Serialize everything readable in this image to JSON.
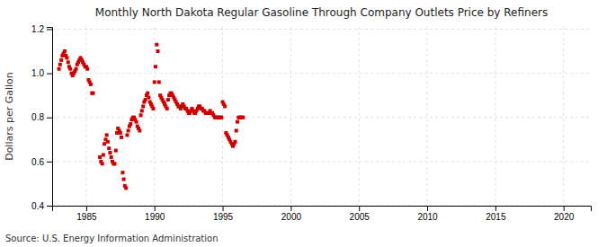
{
  "chart_data": {
    "type": "scatter",
    "title": "Monthly North Dakota Regular Gasoline Through Company Outlets Price by Refiners",
    "ylabel": "Dollars per Gallon",
    "source": "Source: U.S. Energy Information Administration",
    "color": "#cc0000",
    "marker": "square",
    "grid": true,
    "xlim": [
      1982.5,
      2022
    ],
    "ylim": [
      0.4,
      1.21
    ],
    "xticks": [
      1985,
      1990,
      1995,
      2000,
      2005,
      2010,
      2015,
      2020
    ],
    "yticks": [
      0.4,
      0.6,
      0.8,
      {
        "value": 1.0,
        "label": "1.0"
      },
      1.2
    ],
    "x": [
      1983.0,
      1983.08,
      1983.17,
      1983.25,
      1983.33,
      1983.42,
      1983.5,
      1983.58,
      1983.67,
      1983.75,
      1983.83,
      1983.92,
      1984.0,
      1984.08,
      1984.17,
      1984.25,
      1984.33,
      1984.42,
      1984.5,
      1984.58,
      1984.67,
      1984.75,
      1984.83,
      1984.92,
      1985.0,
      1985.08,
      1985.17,
      1985.25,
      1985.33,
      1985.42,
      1985.5,
      1986.0,
      1986.08,
      1986.17,
      1986.25,
      1986.33,
      1986.42,
      1986.5,
      1986.58,
      1986.67,
      1986.75,
      1986.83,
      1986.92,
      1987.0,
      1987.08,
      1987.17,
      1987.25,
      1987.33,
      1987.42,
      1987.5,
      1987.58,
      1987.67,
      1987.75,
      1987.83,
      1987.92,
      1988.0,
      1988.08,
      1988.17,
      1988.25,
      1988.33,
      1988.42,
      1988.5,
      1988.58,
      1988.67,
      1988.75,
      1988.83,
      1988.92,
      1989.0,
      1989.08,
      1989.17,
      1989.25,
      1989.33,
      1989.42,
      1989.5,
      1989.58,
      1989.67,
      1989.75,
      1989.83,
      1989.92,
      1990.0,
      1990.08,
      1990.17,
      1990.25,
      1990.33,
      1990.42,
      1990.5,
      1990.58,
      1990.67,
      1990.75,
      1990.83,
      1990.92,
      1991.0,
      1991.08,
      1991.17,
      1991.25,
      1991.33,
      1991.42,
      1991.5,
      1991.58,
      1991.67,
      1991.75,
      1991.83,
      1991.92,
      1992.0,
      1992.08,
      1992.17,
      1992.25,
      1992.33,
      1992.42,
      1992.5,
      1992.58,
      1992.67,
      1992.75,
      1992.83,
      1992.92,
      1993.0,
      1993.08,
      1993.17,
      1993.25,
      1993.33,
      1993.42,
      1993.5,
      1993.58,
      1993.67,
      1993.75,
      1993.83,
      1993.92,
      1994.0,
      1994.08,
      1994.17,
      1994.25,
      1994.33,
      1994.42,
      1994.5,
      1994.58,
      1994.67,
      1994.75,
      1994.83,
      1994.92,
      1995.0,
      1995.08,
      1995.17,
      1995.25,
      1995.33,
      1995.42,
      1995.5,
      1995.58,
      1995.67,
      1995.75,
      1995.83,
      1995.92,
      1996.0,
      1996.08,
      1996.17,
      1996.25,
      1996.33,
      1996.42,
      1996.5
    ],
    "values": [
      1.02,
      1.04,
      1.06,
      1.08,
      1.09,
      1.1,
      1.08,
      1.07,
      1.05,
      1.03,
      1.02,
      1.0,
      0.99,
      1.0,
      1.01,
      1.02,
      1.04,
      1.05,
      1.06,
      1.07,
      1.06,
      1.05,
      1.04,
      1.03,
      1.03,
      1.02,
      0.97,
      0.96,
      0.95,
      0.91,
      0.91,
      0.62,
      0.6,
      0.59,
      0.63,
      0.68,
      0.7,
      0.72,
      0.69,
      0.66,
      0.64,
      0.62,
      0.6,
      0.59,
      0.59,
      0.65,
      0.73,
      0.75,
      0.74,
      0.73,
      0.71,
      0.55,
      0.52,
      0.49,
      0.48,
      0.72,
      0.74,
      0.76,
      0.77,
      0.79,
      0.8,
      0.8,
      0.79,
      0.78,
      0.76,
      0.75,
      0.74,
      0.81,
      0.83,
      0.85,
      0.87,
      0.88,
      0.9,
      0.91,
      0.89,
      0.87,
      0.86,
      0.85,
      0.84,
      0.96,
      1.03,
      1.13,
      1.1,
      0.96,
      0.9,
      0.89,
      0.88,
      0.87,
      0.86,
      0.85,
      0.84,
      0.88,
      0.9,
      0.91,
      0.91,
      0.9,
      0.89,
      0.88,
      0.87,
      0.86,
      0.85,
      0.85,
      0.84,
      0.85,
      0.86,
      0.85,
      0.84,
      0.84,
      0.83,
      0.82,
      0.82,
      0.83,
      0.84,
      0.83,
      0.82,
      0.82,
      0.83,
      0.84,
      0.85,
      0.85,
      0.84,
      0.84,
      0.83,
      0.83,
      0.82,
      0.82,
      0.82,
      0.82,
      0.83,
      0.82,
      0.82,
      0.81,
      0.8,
      0.8,
      0.8,
      0.8,
      0.8,
      0.8,
      0.8,
      0.87,
      0.86,
      0.85,
      0.73,
      0.72,
      0.71,
      0.7,
      0.69,
      0.68,
      0.67,
      0.68,
      0.69,
      0.74,
      0.78,
      0.8,
      0.8,
      0.8,
      0.8,
      0.8
    ]
  }
}
